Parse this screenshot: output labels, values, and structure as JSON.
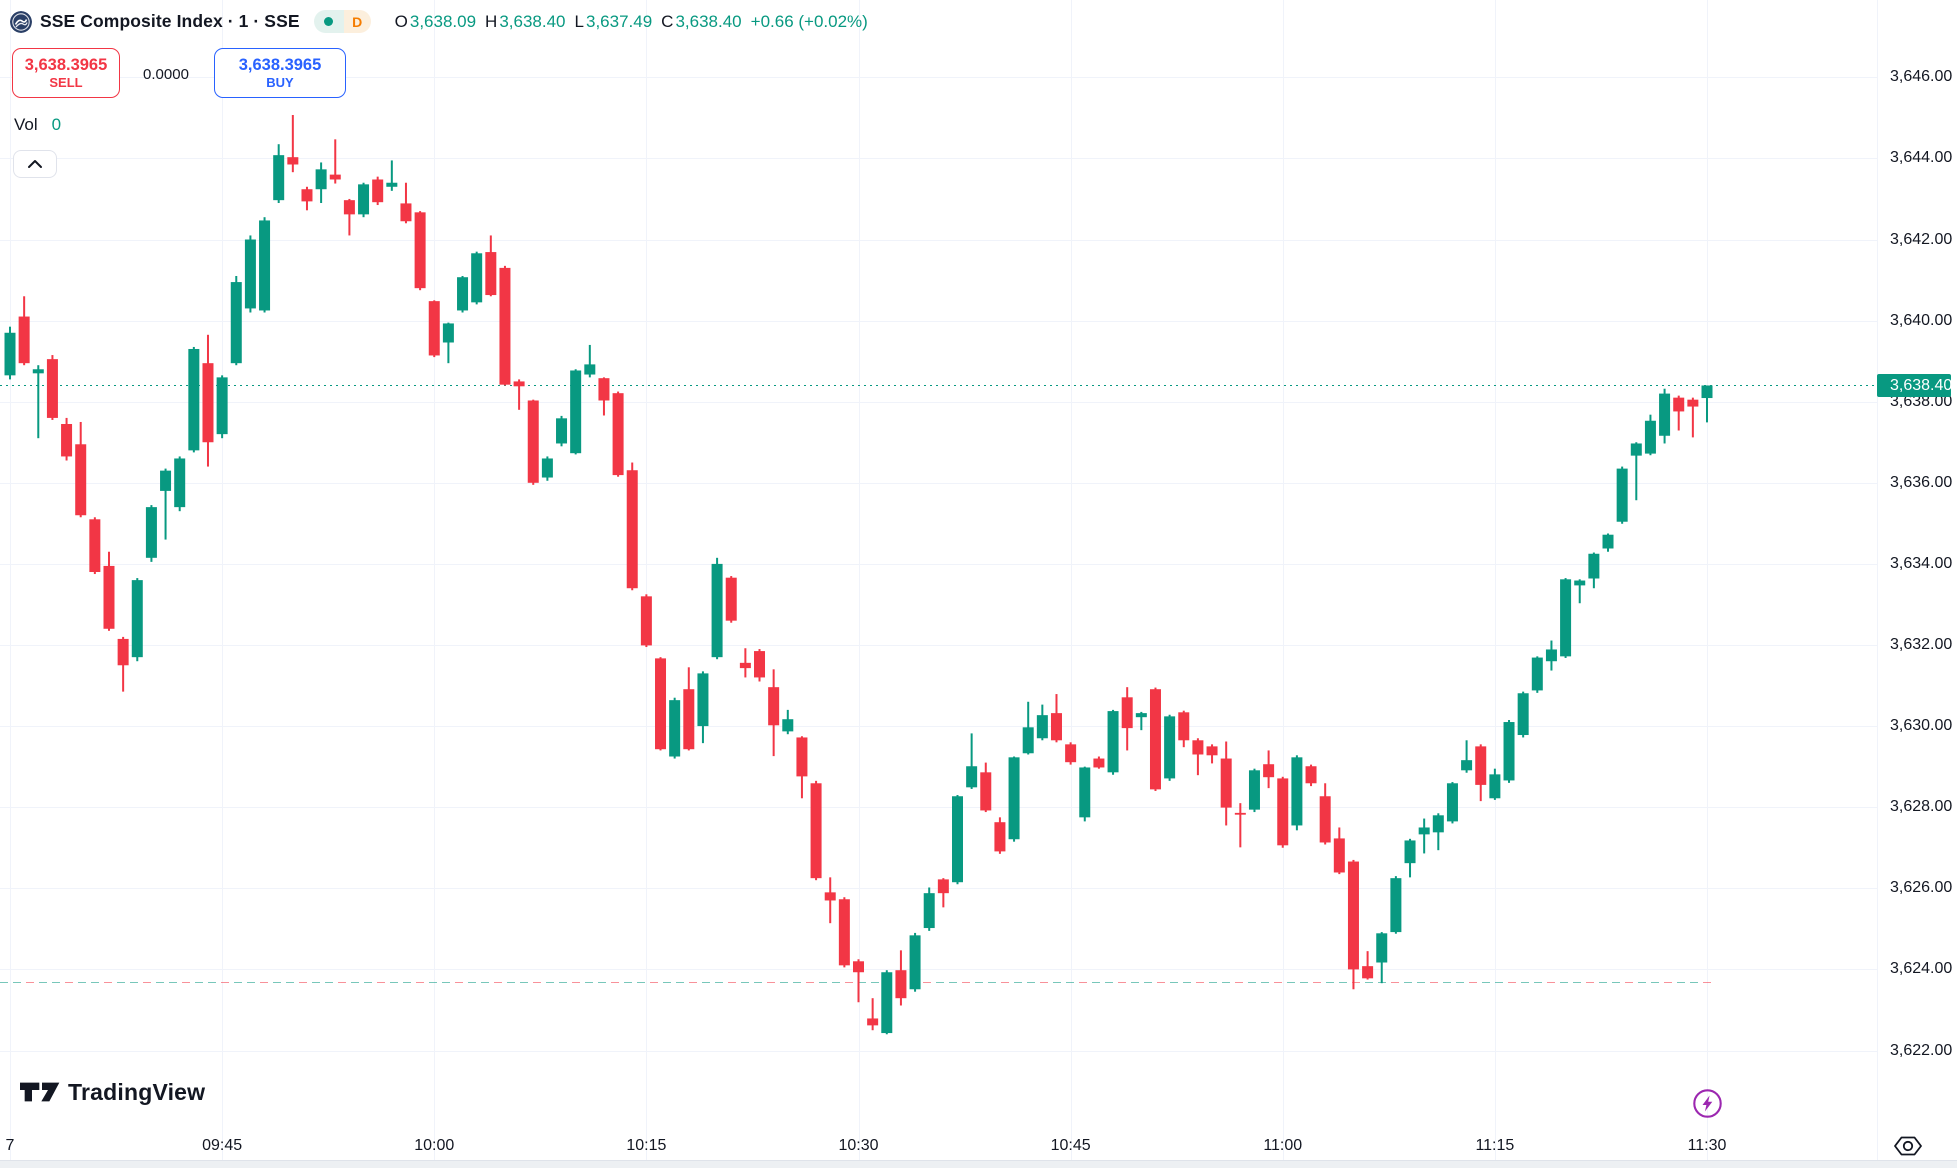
{
  "header": {
    "title": "SSE Composite Index · 1 · SSE",
    "interval_badge": "D",
    "ohlc": {
      "o_label": "O",
      "o": "3,638.09",
      "h_label": "H",
      "h": "3,638.40",
      "l_label": "L",
      "l": "3,637.49",
      "c_label": "C",
      "c": "3,638.40",
      "change": "+0.66 (+0.02%)"
    }
  },
  "trade_panel": {
    "sell_price": "3,638.3965",
    "sell_label": "SELL",
    "spread": "0.0000",
    "buy_price": "3,638.3965",
    "buy_label": "BUY"
  },
  "volume": {
    "label": "Vol",
    "value": "0"
  },
  "footer": {
    "brand": "TradingView"
  },
  "colors": {
    "up": "#089981",
    "down": "#f23645",
    "accent_teal": "#089981",
    "sell_red": "#f23645",
    "buy_blue": "#2962ff",
    "badge_orange": "#f57c00",
    "purple": "#9c27b0",
    "grid": "#f0f3fa",
    "text": "#131722"
  },
  "chart_data": {
    "type": "candlestick",
    "title": "SSE Composite Index",
    "interval": "1",
    "exchange": "SSE",
    "start_time": "09:30",
    "step_minutes": 1,
    "legend_position": "top-left",
    "grid": true,
    "price_axis_ticks": [
      "3,646.00",
      "3,644.00",
      "3,642.00",
      "3,640.00",
      "3,638.00",
      "3,636.00",
      "3,634.00",
      "3,632.00",
      "3,630.00",
      "3,628.00",
      "3,626.00",
      "3,624.00",
      "3,622.00"
    ],
    "time_axis_ticks": [
      {
        "text": "7",
        "index": 0
      },
      {
        "text": "09:45",
        "index": 15
      },
      {
        "text": "10:00",
        "index": 30
      },
      {
        "text": "10:15",
        "index": 45
      },
      {
        "text": "10:30",
        "index": 60
      },
      {
        "text": "10:45",
        "index": 75
      },
      {
        "text": "11:00",
        "index": 90
      },
      {
        "text": "11:15",
        "index": 105
      },
      {
        "text": "11:30",
        "index": 120
      }
    ],
    "visible_price_range": [
      3619.1,
      3647.9
    ],
    "reference": {
      "last_price": 3638.4,
      "last_price_label": "3,638.40",
      "baseline_price": 3623.7
    },
    "candles": [
      [
        3638.65,
        3639.85,
        3638.55,
        3639.7
      ],
      [
        3640.1,
        3640.6,
        3638.9,
        3638.95
      ],
      [
        3638.7,
        3638.9,
        3637.1,
        3638.8
      ],
      [
        3639.05,
        3639.15,
        3637.55,
        3637.6
      ],
      [
        3637.45,
        3637.6,
        3636.55,
        3636.65
      ],
      [
        3636.95,
        3637.5,
        3635.15,
        3635.2
      ],
      [
        3635.1,
        3635.15,
        3633.75,
        3633.8
      ],
      [
        3633.95,
        3634.3,
        3632.35,
        3632.4
      ],
      [
        3632.15,
        3632.2,
        3630.85,
        3631.5
      ],
      [
        3631.7,
        3633.65,
        3631.6,
        3633.6
      ],
      [
        3634.15,
        3635.45,
        3634.05,
        3635.4
      ],
      [
        3635.8,
        3636.35,
        3634.6,
        3636.3
      ],
      [
        3635.4,
        3636.65,
        3635.3,
        3636.6
      ],
      [
        3636.8,
        3639.35,
        3636.75,
        3639.3
      ],
      [
        3638.95,
        3639.65,
        3636.4,
        3637.0
      ],
      [
        3637.2,
        3638.65,
        3637.1,
        3638.6
      ],
      [
        3638.95,
        3641.1,
        3638.9,
        3640.95
      ],
      [
        3640.3,
        3642.1,
        3640.2,
        3642.0
      ],
      [
        3640.25,
        3642.55,
        3640.2,
        3642.47
      ],
      [
        3642.97,
        3644.35,
        3642.9,
        3644.08
      ],
      [
        3644.03,
        3645.07,
        3643.66,
        3643.85
      ],
      [
        3643.24,
        3643.3,
        3642.72,
        3642.94
      ],
      [
        3643.24,
        3643.9,
        3642.9,
        3643.73
      ],
      [
        3643.6,
        3644.47,
        3643.38,
        3643.48
      ],
      [
        3642.97,
        3643.0,
        3642.1,
        3642.62
      ],
      [
        3642.62,
        3643.4,
        3642.55,
        3643.36
      ],
      [
        3643.48,
        3643.55,
        3642.85,
        3642.92
      ],
      [
        3643.3,
        3643.95,
        3643.2,
        3643.4
      ],
      [
        3642.89,
        3643.4,
        3642.4,
        3642.45
      ],
      [
        3642.67,
        3642.7,
        3640.75,
        3640.8
      ],
      [
        3640.48,
        3640.5,
        3639.1,
        3639.14
      ],
      [
        3639.46,
        3639.95,
        3638.95,
        3639.93
      ],
      [
        3640.25,
        3641.1,
        3640.2,
        3641.07
      ],
      [
        3640.45,
        3641.7,
        3640.4,
        3641.66
      ],
      [
        3641.69,
        3642.1,
        3640.6,
        3640.63
      ],
      [
        3641.3,
        3641.35,
        3638.4,
        3638.42
      ],
      [
        3638.5,
        3638.55,
        3637.8,
        3638.38
      ],
      [
        3638.03,
        3638.05,
        3635.95,
        3636.0
      ],
      [
        3636.13,
        3636.65,
        3636.05,
        3636.6
      ],
      [
        3636.97,
        3637.65,
        3636.9,
        3637.59
      ],
      [
        3636.73,
        3638.8,
        3636.7,
        3638.77
      ],
      [
        3638.67,
        3639.4,
        3638.6,
        3638.92
      ],
      [
        3638.58,
        3638.6,
        3637.66,
        3638.03
      ],
      [
        3638.21,
        3638.25,
        3636.15,
        3636.19
      ],
      [
        3636.31,
        3636.5,
        3633.35,
        3633.4
      ],
      [
        3633.2,
        3633.25,
        3631.95,
        3631.99
      ],
      [
        3631.67,
        3631.7,
        3629.4,
        3629.43
      ],
      [
        3629.25,
        3630.7,
        3629.2,
        3630.64
      ],
      [
        3630.91,
        3631.45,
        3629.4,
        3629.43
      ],
      [
        3630.0,
        3631.35,
        3629.58,
        3631.3
      ],
      [
        3631.7,
        3634.15,
        3631.65,
        3634.0
      ],
      [
        3633.66,
        3633.7,
        3632.55,
        3632.6
      ],
      [
        3631.56,
        3631.92,
        3631.2,
        3631.43
      ],
      [
        3631.85,
        3631.9,
        3631.1,
        3631.2
      ],
      [
        3630.96,
        3631.4,
        3629.26,
        3630.02
      ],
      [
        3629.87,
        3630.4,
        3629.8,
        3630.17
      ],
      [
        3629.72,
        3629.75,
        3628.22,
        3628.76
      ],
      [
        3628.59,
        3628.65,
        3626.2,
        3626.25
      ],
      [
        3625.9,
        3626.27,
        3625.14,
        3625.7
      ],
      [
        3625.73,
        3625.78,
        3624.05,
        3624.1
      ],
      [
        3624.2,
        3624.25,
        3623.19,
        3623.93
      ],
      [
        3622.79,
        3623.29,
        3622.5,
        3622.62
      ],
      [
        3622.43,
        3623.98,
        3622.4,
        3623.93
      ],
      [
        3623.98,
        3624.47,
        3623.11,
        3623.29
      ],
      [
        3623.51,
        3624.9,
        3623.45,
        3624.84
      ],
      [
        3625.02,
        3626.02,
        3624.95,
        3625.88
      ],
      [
        3626.22,
        3626.25,
        3625.53,
        3625.88
      ],
      [
        3626.15,
        3628.3,
        3626.1,
        3628.27
      ],
      [
        3628.49,
        3629.82,
        3628.45,
        3629.01
      ],
      [
        3628.86,
        3629.1,
        3627.88,
        3627.92
      ],
      [
        3627.63,
        3627.75,
        3626.85,
        3626.91
      ],
      [
        3627.21,
        3629.25,
        3627.15,
        3629.23
      ],
      [
        3629.33,
        3630.6,
        3629.3,
        3629.97
      ],
      [
        3629.7,
        3630.53,
        3629.65,
        3630.27
      ],
      [
        3630.32,
        3630.79,
        3629.6,
        3629.65
      ],
      [
        3629.55,
        3629.6,
        3629.05,
        3629.11
      ],
      [
        3627.75,
        3629.0,
        3627.65,
        3628.98
      ],
      [
        3629.2,
        3629.25,
        3628.95,
        3628.98
      ],
      [
        3628.86,
        3630.4,
        3628.8,
        3630.37
      ],
      [
        3630.71,
        3630.96,
        3629.4,
        3629.95
      ],
      [
        3630.22,
        3630.35,
        3629.9,
        3630.32
      ],
      [
        3630.91,
        3630.95,
        3628.4,
        3628.44
      ],
      [
        3628.71,
        3630.28,
        3628.65,
        3630.24
      ],
      [
        3630.34,
        3630.38,
        3629.48,
        3629.65
      ],
      [
        3629.65,
        3629.7,
        3628.79,
        3629.3
      ],
      [
        3629.5,
        3629.55,
        3629.08,
        3629.28
      ],
      [
        3629.2,
        3629.62,
        3627.55,
        3627.99
      ],
      [
        3627.86,
        3628.1,
        3627.01,
        3627.84
      ],
      [
        3627.94,
        3628.95,
        3627.88,
        3628.91
      ],
      [
        3629.06,
        3629.4,
        3628.47,
        3628.74
      ],
      [
        3628.71,
        3628.75,
        3627.0,
        3627.06
      ],
      [
        3627.55,
        3629.28,
        3627.43,
        3629.23
      ],
      [
        3629.01,
        3629.05,
        3628.52,
        3628.59
      ],
      [
        3628.27,
        3628.59,
        3627.08,
        3627.13
      ],
      [
        3627.23,
        3627.5,
        3626.35,
        3626.39
      ],
      [
        3626.66,
        3626.7,
        3623.51,
        3624.0
      ],
      [
        3624.08,
        3624.45,
        3623.75,
        3623.78
      ],
      [
        3624.17,
        3624.92,
        3623.66,
        3624.89
      ],
      [
        3624.92,
        3626.3,
        3624.88,
        3626.25
      ],
      [
        3626.62,
        3627.22,
        3626.27,
        3627.18
      ],
      [
        3627.33,
        3627.72,
        3626.86,
        3627.5
      ],
      [
        3627.38,
        3627.85,
        3626.94,
        3627.8
      ],
      [
        3627.65,
        3628.62,
        3627.6,
        3628.59
      ],
      [
        3628.91,
        3629.65,
        3628.85,
        3629.16
      ],
      [
        3629.5,
        3629.55,
        3628.15,
        3628.55
      ],
      [
        3628.22,
        3628.95,
        3628.18,
        3628.81
      ],
      [
        3628.66,
        3630.15,
        3628.6,
        3630.1
      ],
      [
        3629.78,
        3630.85,
        3629.72,
        3630.81
      ],
      [
        3630.88,
        3631.72,
        3630.82,
        3631.69
      ],
      [
        3631.6,
        3632.11,
        3631.37,
        3631.89
      ],
      [
        3631.72,
        3633.65,
        3631.68,
        3633.62
      ],
      [
        3633.47,
        3633.62,
        3633.03,
        3633.59
      ],
      [
        3633.64,
        3634.28,
        3633.4,
        3634.25
      ],
      [
        3634.38,
        3634.75,
        3634.3,
        3634.72
      ],
      [
        3635.04,
        3636.4,
        3634.99,
        3636.35
      ],
      [
        3636.67,
        3637.0,
        3635.57,
        3636.97
      ],
      [
        3636.72,
        3637.68,
        3636.68,
        3637.53
      ],
      [
        3637.16,
        3638.32,
        3636.97,
        3638.2
      ],
      [
        3638.1,
        3638.15,
        3637.29,
        3637.76
      ],
      [
        3638.05,
        3638.1,
        3637.12,
        3637.88
      ],
      [
        3638.09,
        3638.4,
        3637.49,
        3638.4
      ]
    ]
  }
}
